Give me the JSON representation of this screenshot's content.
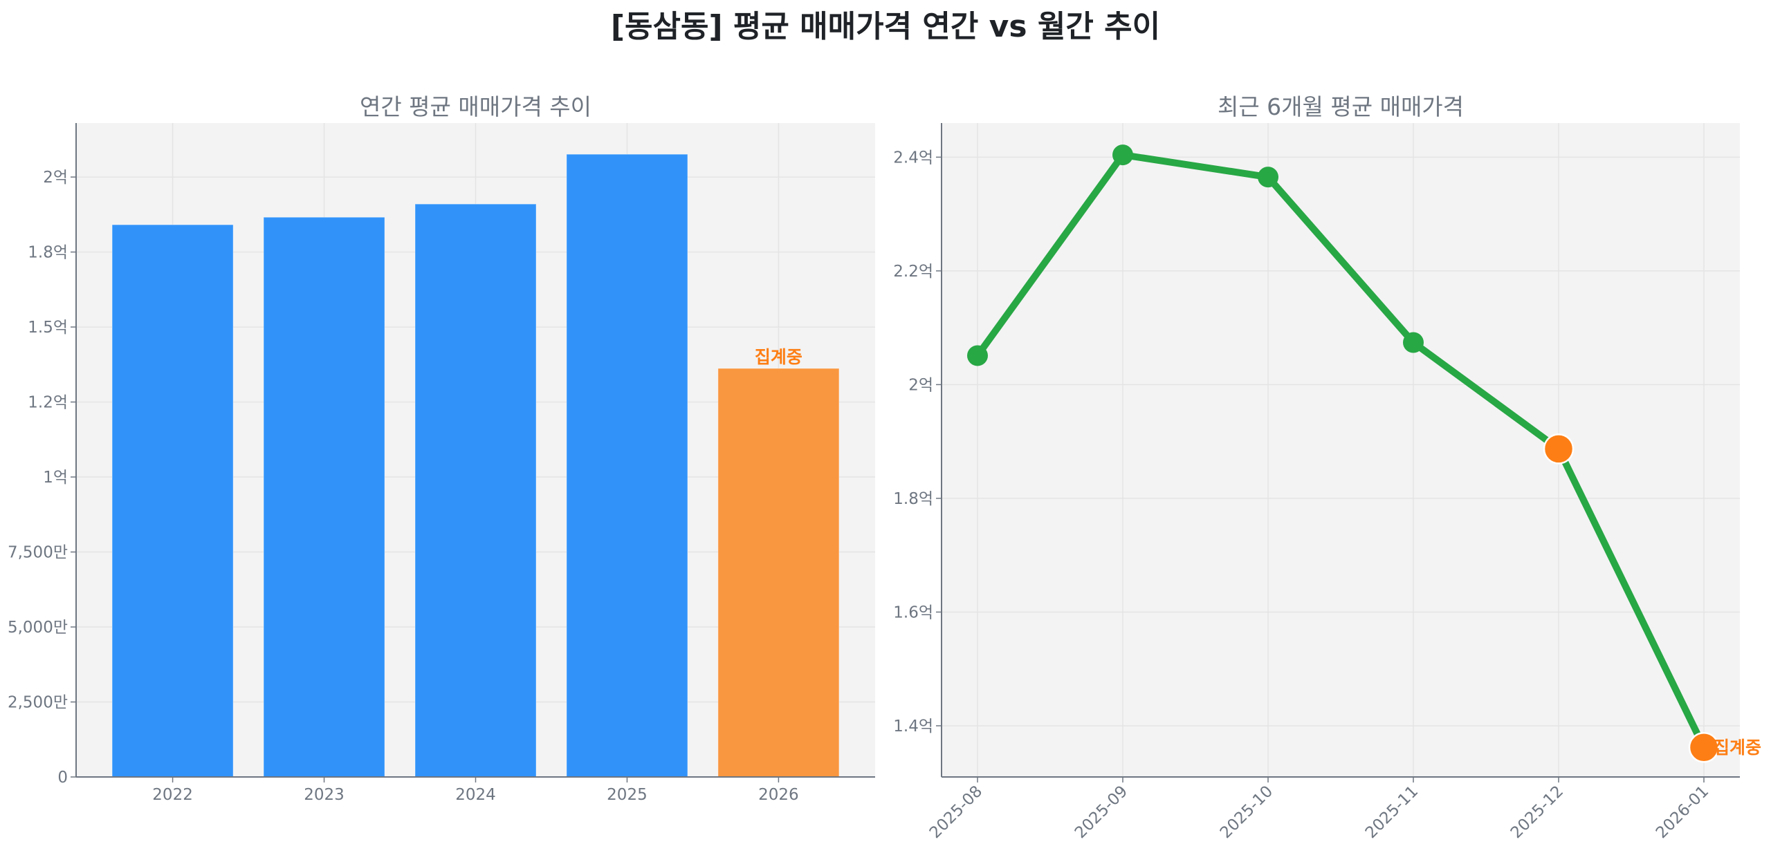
{
  "figure": {
    "suptitle": "[동삼동] 평균 매매가격 연간 vs 월간 추이"
  },
  "left": {
    "title": "연간 평균 매매가격 추이",
    "annotation": "집계중",
    "bar_color": "#3193fa",
    "partial_color": "#f99740"
  },
  "right": {
    "title": "최근 6개월 평균 매매가격",
    "annotation": "집계중",
    "line_color": "#28a745",
    "partial_color": "#fd7e14"
  },
  "chart_data": [
    {
      "type": "bar",
      "title": "연간 평균 매매가격 추이",
      "xlabel": "",
      "ylabel": "",
      "categories": [
        "2022",
        "2023",
        "2024",
        "2025",
        "2026"
      ],
      "values": [
        184100000,
        186600000,
        191000000,
        207600000,
        136200000
      ],
      "highlight": {
        "2026": "집계중"
      },
      "ylim": [
        0,
        218000000
      ],
      "yticks": [
        0,
        25000000,
        50000000,
        75000000,
        100000000,
        125000000,
        150000000,
        175000000,
        200000000
      ],
      "ytick_labels": [
        "0",
        "2,500만",
        "5,000만",
        "7,500만",
        "1억",
        "1.2억",
        "1.5억",
        "1.8억",
        "2억"
      ],
      "grid": true
    },
    {
      "type": "line",
      "title": "최근 6개월 평균 매매가격",
      "xlabel": "",
      "ylabel": "",
      "categories": [
        "2025-08",
        "2025-09",
        "2025-10",
        "2025-11",
        "2025-12",
        "2026-01"
      ],
      "values": [
        205100000,
        240400000,
        236500000,
        207400000,
        188700000,
        136200000
      ],
      "highlight_points": [
        "2025-12",
        "2026-01"
      ],
      "annotation": {
        "2026-01": "집계중"
      },
      "ylim": [
        131000000,
        246000000
      ],
      "yticks": [
        140000000,
        160000000,
        180000000,
        200000000,
        220000000,
        240000000
      ],
      "ytick_labels": [
        "1.4억",
        "1.6억",
        "1.8억",
        "2억",
        "2.2억",
        "2.4억"
      ],
      "grid": true
    }
  ]
}
